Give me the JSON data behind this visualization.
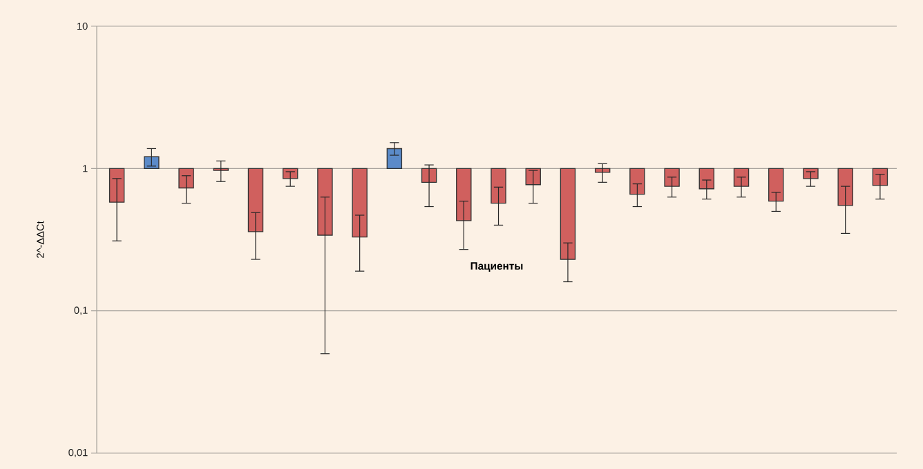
{
  "chart_data": {
    "type": "bar",
    "xlabel": "Пациенты",
    "ylabel": "2^-ΔΔCt",
    "categories": [
      null,
      null,
      null,
      null,
      null,
      null,
      null,
      null,
      null,
      null,
      null,
      null,
      null,
      null,
      null,
      null,
      null,
      null,
      null,
      null,
      null,
      null,
      null
    ],
    "base": [
      1,
      1,
      1,
      1,
      1,
      1,
      1,
      1,
      1,
      1,
      1,
      1,
      1,
      1,
      1,
      1,
      1,
      1,
      1,
      1,
      1,
      1,
      1
    ],
    "values": [
      -0.42,
      0.21,
      -0.27,
      -0.03,
      -0.64,
      -0.15,
      -0.66,
      -0.67,
      0.38,
      -0.2,
      -0.57,
      -0.43,
      -0.23,
      -0.77,
      -0.06,
      -0.34,
      -0.25,
      -0.28,
      -0.25,
      -0.41,
      -0.15,
      -0.45,
      -0.24
    ],
    "errors": [
      0.27,
      0.17,
      0.16,
      0.16,
      0.13,
      0.1,
      0.29,
      0.14,
      0.14,
      0.26,
      0.16,
      0.17,
      0.2,
      0.07,
      0.14,
      0.12,
      0.12,
      0.11,
      0.12,
      0.09,
      0.1,
      0.2,
      0.15
    ],
    "colors": [
      "#d0605e",
      "#5b8bc9",
      "#d0605e",
      "#d0605e",
      "#d0605e",
      "#d0605e",
      "#d0605e",
      "#d0605e",
      "#5b8bc9",
      "#d0605e",
      "#d0605e",
      "#d0605e",
      "#d0605e",
      "#d0605e",
      "#d0605e",
      "#d0605e",
      "#d0605e",
      "#d0605e",
      "#d0605e",
      "#d0605e",
      "#d0605e",
      "#d0605e",
      "#d0605e"
    ],
    "log": true,
    "ylim": [
      0.01,
      10
    ],
    "yticks": [
      {
        "value": 0.01,
        "label": "0,01"
      },
      {
        "value": 0.1,
        "label": "0,1"
      },
      {
        "value": 1,
        "label": "1"
      },
      {
        "value": 10,
        "label": "10"
      }
    ],
    "grid": "y"
  }
}
